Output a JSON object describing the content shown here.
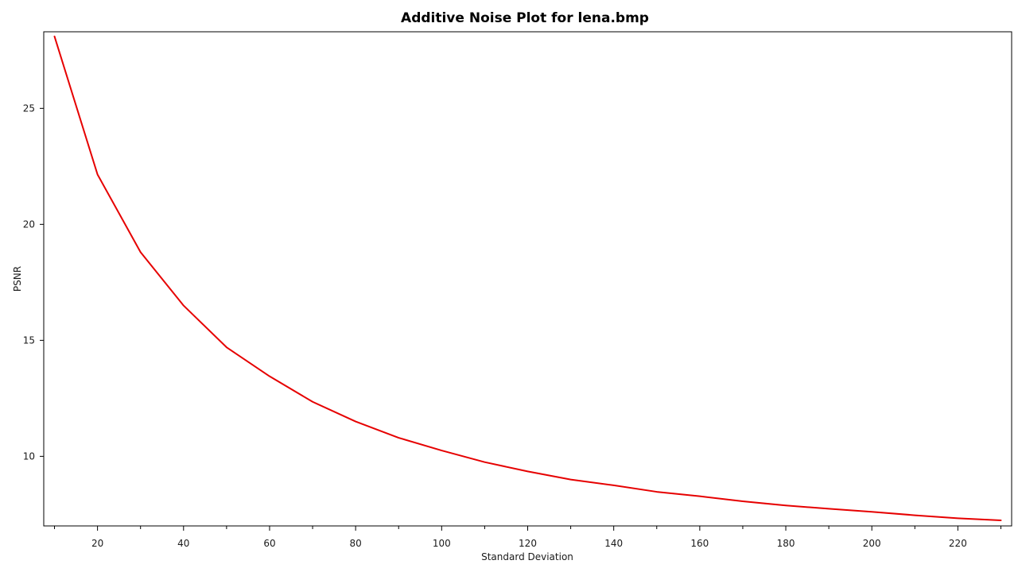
{
  "chart_data": {
    "type": "line",
    "title": "Additive Noise Plot for lena.bmp",
    "xlabel": "Standard Deviation",
    "ylabel": "PSNR",
    "xlim": [
      7.5,
      232.5
    ],
    "ylim": [
      7.0,
      28.3
    ],
    "x_ticks": [
      20,
      40,
      60,
      80,
      100,
      120,
      140,
      160,
      180,
      200,
      220
    ],
    "x_minor_ticks": [
      10,
      30,
      50,
      70,
      90,
      110,
      130,
      150,
      170,
      190,
      210,
      230
    ],
    "y_ticks": [
      10,
      15,
      20,
      25
    ],
    "grid": false,
    "legend": "none",
    "series": [
      {
        "color": "#e60000",
        "x": [
          10,
          20,
          30,
          40,
          50,
          60,
          70,
          80,
          90,
          100,
          110,
          120,
          130,
          140,
          150,
          160,
          170,
          180,
          190,
          200,
          210,
          220,
          230
        ],
        "y": [
          28.1,
          22.15,
          18.8,
          16.5,
          14.7,
          13.45,
          12.35,
          11.5,
          10.8,
          10.25,
          9.75,
          9.35,
          9.0,
          8.75,
          8.47,
          8.28,
          8.06,
          7.88,
          7.74,
          7.61,
          7.46,
          7.33,
          7.24
        ]
      }
    ]
  }
}
